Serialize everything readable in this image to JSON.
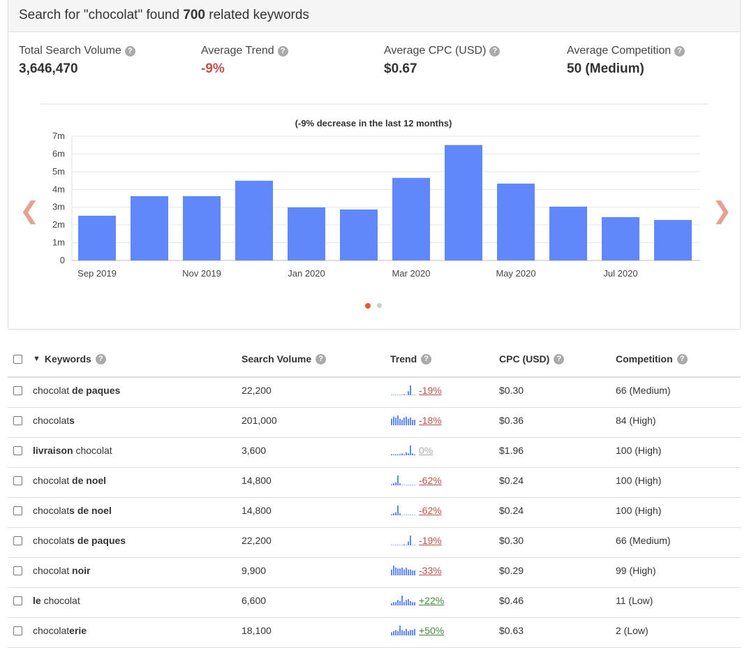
{
  "header": {
    "prefix": "Search for \"chocolat\" found ",
    "count": "700",
    "suffix": " related keywords"
  },
  "stats": [
    {
      "label": "Total Search Volume",
      "value": "3,646,470",
      "color": "#333333"
    },
    {
      "label": "Average Trend",
      "value": "-9%",
      "color": "#c0504d"
    },
    {
      "label": "Average CPC (USD)",
      "value": "$0.67",
      "color": "#333333"
    },
    {
      "label": "Average Competition",
      "value": "50 (Medium)",
      "color": "#333333"
    }
  ],
  "chart_data": {
    "type": "bar",
    "title": "(-9% decrease in the last 12 months)",
    "categories": [
      "Sep 2019",
      "Oct 2019",
      "Nov 2019",
      "Dec 2019",
      "Jan 2020",
      "Feb 2020",
      "Mar 2020",
      "Apr 2020",
      "May 2020",
      "Jun 2020",
      "Jul 2020",
      "Aug 2020"
    ],
    "tick_labels": [
      "Sep 2019",
      "Nov 2019",
      "Jan 2020",
      "Mar 2020",
      "May 2020",
      "Jul 2020"
    ],
    "values": [
      2.52,
      3.62,
      3.62,
      4.49,
      2.99,
      2.87,
      4.65,
      6.5,
      4.33,
      3.03,
      2.44,
      2.28
    ],
    "unit": "m",
    "yticks": [
      "0",
      "1m",
      "2m",
      "3m",
      "4m",
      "5m",
      "6m",
      "7m"
    ],
    "ylim": [
      0,
      7
    ],
    "grid": true,
    "bar_color": "#6088fb"
  },
  "carousel": {
    "active": 0,
    "count": 2,
    "active_color": "#e45a2b",
    "inactive_color": "#cccccc"
  },
  "table": {
    "headers": {
      "keywords": "Keywords",
      "volume": "Search Volume",
      "trend": "Trend",
      "cpc": "CPC (USD)",
      "competition": "Competition"
    },
    "rows": [
      {
        "parts": [
          [
            "chocolat ",
            false
          ],
          [
            "de paques",
            true
          ]
        ],
        "volume": "22,200",
        "trend": "-19%",
        "trend_color": "#c0504d",
        "spark": [
          0,
          0,
          0,
          0,
          0,
          0,
          1,
          0,
          4,
          10,
          0,
          0
        ],
        "cpc": "$0.30",
        "competition": "66 (Medium)"
      },
      {
        "parts": [
          [
            "chocolat",
            false
          ],
          [
            "s",
            true
          ]
        ],
        "volume": "201,000",
        "trend": "-18%",
        "trend_color": "#c0504d",
        "spark": [
          6,
          8,
          7,
          9,
          6,
          5,
          7,
          8,
          6,
          7,
          5,
          5
        ],
        "cpc": "$0.36",
        "competition": "84 (High)"
      },
      {
        "parts": [
          [
            "livraison",
            true
          ],
          [
            " chocolat",
            false
          ]
        ],
        "volume": "3,600",
        "trend": "0%",
        "trend_color": "#aaaaaa",
        "spark": [
          1,
          1,
          1,
          1,
          1,
          2,
          1,
          3,
          2,
          10,
          2,
          1
        ],
        "cpc": "$1.96",
        "competition": "100 (High)"
      },
      {
        "parts": [
          [
            "chocolat ",
            false
          ],
          [
            "de noel",
            true
          ]
        ],
        "volume": "14,800",
        "trend": "-62%",
        "trend_color": "#c0504d",
        "spark": [
          1,
          2,
          3,
          10,
          2,
          0,
          0,
          0,
          0,
          0,
          0,
          0
        ],
        "cpc": "$0.24",
        "competition": "100 (High)"
      },
      {
        "parts": [
          [
            "chocolat",
            false
          ],
          [
            "s de noel",
            true
          ]
        ],
        "volume": "14,800",
        "trend": "-62%",
        "trend_color": "#c0504d",
        "spark": [
          1,
          2,
          3,
          10,
          2,
          0,
          0,
          0,
          0,
          0,
          0,
          0
        ],
        "cpc": "$0.24",
        "competition": "100 (High)"
      },
      {
        "parts": [
          [
            "chocolat",
            false
          ],
          [
            "s de paques",
            true
          ]
        ],
        "volume": "22,200",
        "trend": "-19%",
        "trend_color": "#c0504d",
        "spark": [
          0,
          0,
          0,
          0,
          0,
          0,
          1,
          0,
          4,
          10,
          0,
          0
        ],
        "cpc": "$0.30",
        "competition": "66 (Medium)"
      },
      {
        "parts": [
          [
            "chocolat ",
            false
          ],
          [
            "noir",
            true
          ]
        ],
        "volume": "9,900",
        "trend": "-33%",
        "trend_color": "#c0504d",
        "spark": [
          6,
          10,
          8,
          7,
          7,
          8,
          6,
          8,
          6,
          6,
          5,
          5
        ],
        "cpc": "$0.29",
        "competition": "99 (High)"
      },
      {
        "parts": [
          [
            "le",
            true
          ],
          [
            " chocolat",
            false
          ]
        ],
        "volume": "6,600",
        "trend": "+22%",
        "trend_color": "#3c8a3c",
        "spark": [
          2,
          3,
          3,
          5,
          4,
          9,
          3,
          5,
          6,
          4,
          3,
          3
        ],
        "cpc": "$0.46",
        "competition": "11 (Low)"
      },
      {
        "parts": [
          [
            "chocolat",
            false
          ],
          [
            "erie",
            true
          ]
        ],
        "volume": "18,100",
        "trend": "+50%",
        "trend_color": "#3c8a3c",
        "spark": [
          3,
          4,
          5,
          4,
          9,
          5,
          4,
          6,
          4,
          5,
          5,
          6
        ],
        "cpc": "$0.63",
        "competition": "2 (Low)"
      }
    ]
  }
}
